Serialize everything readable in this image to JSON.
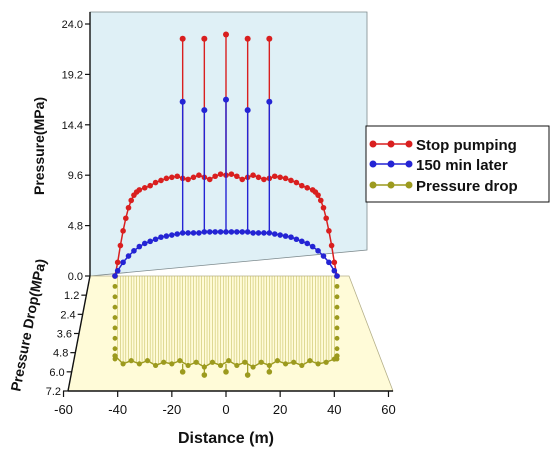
{
  "chart_data": [
    {
      "type": "line",
      "panel": "upper",
      "ylabel": "Pressure(MPa)",
      "yticks": [
        "0.0",
        "4.8",
        "9.6",
        "14.4",
        "19.2",
        "24.0"
      ],
      "ylim": [
        0,
        24
      ],
      "xlim": [
        -60,
        60
      ],
      "series": [
        {
          "name": "Stop pumping",
          "color": "#d91f1f",
          "x": [
            -41,
            -40,
            -39,
            -38,
            -37,
            -36,
            -35,
            -34,
            -33,
            -32,
            -30,
            -28,
            -26,
            -24,
            -22,
            -20,
            -18,
            -16,
            -14,
            -12,
            -10,
            -8,
            -6,
            -4,
            -2,
            0,
            2,
            4,
            6,
            8,
            10,
            12,
            14,
            16,
            18,
            20,
            22,
            24,
            26,
            28,
            30,
            32,
            33,
            34,
            35,
            36,
            37,
            38,
            39,
            40,
            41
          ],
          "y": [
            0,
            1.3,
            2.9,
            4.3,
            5.5,
            6.5,
            7.2,
            7.7,
            8.0,
            8.2,
            8.4,
            8.6,
            8.9,
            9.1,
            9.3,
            9.4,
            9.5,
            9.3,
            9.2,
            9.4,
            9.6,
            9.4,
            9.2,
            9.5,
            9.7,
            9.6,
            9.7,
            9.5,
            9.2,
            9.4,
            9.6,
            9.4,
            9.2,
            9.3,
            9.5,
            9.4,
            9.3,
            9.1,
            8.9,
            8.6,
            8.4,
            8.2,
            8.0,
            7.7,
            7.2,
            6.5,
            5.5,
            4.3,
            2.9,
            1.3,
            0
          ]
        },
        {
          "name": "150 min later",
          "color": "#2424d4",
          "x": [
            -41,
            -40,
            -38,
            -36,
            -34,
            -32,
            -30,
            -28,
            -26,
            -24,
            -22,
            -20,
            -18,
            -16,
            -14,
            -12,
            -10,
            -8,
            -6,
            -4,
            -2,
            0,
            2,
            4,
            6,
            8,
            10,
            12,
            14,
            16,
            18,
            20,
            22,
            24,
            26,
            28,
            30,
            32,
            34,
            36,
            38,
            40,
            41
          ],
          "y": [
            0,
            0.5,
            1.3,
            1.9,
            2.4,
            2.8,
            3.1,
            3.3,
            3.5,
            3.7,
            3.8,
            3.9,
            4.0,
            4.1,
            4.1,
            4.1,
            4.1,
            4.2,
            4.2,
            4.2,
            4.2,
            4.2,
            4.2,
            4.2,
            4.2,
            4.2,
            4.1,
            4.1,
            4.1,
            4.1,
            4.0,
            3.9,
            3.8,
            3.7,
            3.5,
            3.3,
            3.1,
            2.8,
            2.4,
            1.9,
            1.3,
            0.5,
            0
          ]
        }
      ],
      "spikes": {
        "x": [
          -16,
          -8,
          0,
          8,
          16
        ],
        "red_top": [
          22.6,
          22.6,
          23.0,
          22.6,
          22.6
        ],
        "blue_top": [
          16.6,
          15.8,
          16.8,
          15.8,
          16.6
        ]
      }
    },
    {
      "type": "line",
      "panel": "lower",
      "ylabel": "Pressure Drop(MPa)",
      "yticks": [
        "1.2",
        "2.4",
        "3.6",
        "4.8",
        "6.0",
        "7.2"
      ],
      "ylim": [
        0,
        7.2
      ],
      "series": [
        {
          "name": "Pressure drop",
          "color": "#9c9a1e",
          "x": [
            -41,
            -38,
            -35,
            -32,
            -29,
            -26,
            -23,
            -20,
            -17,
            -14,
            -11,
            -8,
            -5,
            -2,
            1,
            4,
            7,
            10,
            13,
            16,
            19,
            22,
            25,
            28,
            31,
            34,
            37,
            40,
            41
          ],
          "y": [
            5.0,
            5.5,
            5.3,
            5.5,
            5.3,
            5.6,
            5.4,
            5.5,
            5.3,
            5.6,
            5.4,
            5.7,
            5.4,
            5.6,
            5.3,
            5.6,
            5.4,
            5.7,
            5.4,
            5.6,
            5.3,
            5.5,
            5.4,
            5.6,
            5.3,
            5.5,
            5.4,
            5.2,
            5.0
          ]
        }
      ]
    }
  ],
  "legend": [
    "Stop pumping",
    "150 min later",
    "Pressure drop"
  ],
  "xaxis": {
    "label": "Distance (m)",
    "ticks": [
      "-60",
      "-40",
      "-20",
      "0",
      "20",
      "40",
      "60"
    ]
  }
}
